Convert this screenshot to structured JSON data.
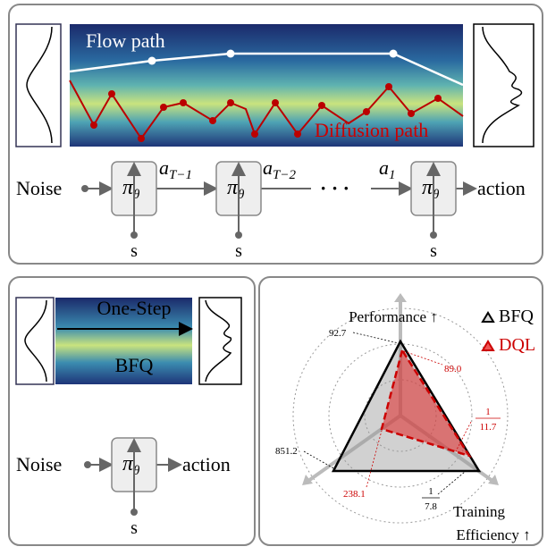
{
  "top_panel": {
    "flow_label": "Flow path",
    "diffusion_label": "Diffusion path",
    "input": "Noise",
    "policy": {
      "base": "π",
      "sub": "θ"
    },
    "actions": [
      {
        "base": "a",
        "sub": "T−1"
      },
      {
        "base": "a",
        "sub": "T−2"
      },
      {
        "base": "a",
        "sub": "1"
      }
    ],
    "ellipsis": "· · ·",
    "state": "s",
    "output": "action"
  },
  "bottom_left_panel": {
    "method_line1": "One-Step",
    "method_line2": "BFQ",
    "input": "Noise",
    "policy": {
      "base": "π",
      "sub": "θ"
    },
    "state": "s",
    "output": "action"
  },
  "radar_panel": {
    "axis_top": "Performance ↑",
    "axis_right": [
      "Training",
      "Efficiency ↑"
    ],
    "legend": [
      "BFQ",
      "DQL"
    ],
    "bfq_labels": {
      "performance": "92.7",
      "left": "851.2",
      "efficiency": {
        "numerator": "1",
        "denominator": "7.8"
      }
    },
    "dql_labels": {
      "performance": "89.0",
      "left": "238.1",
      "efficiency": {
        "numerator": "1",
        "denominator": "11.7"
      }
    }
  }
}
